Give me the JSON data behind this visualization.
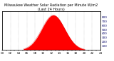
{
  "title": "Milwaukee Weather Solar Radiation per Minute W/m2 (Last 24 Hours)",
  "bg_color": "#ffffff",
  "plot_bg_color": "#ffffff",
  "border_color": "#000000",
  "fill_color": "#ff0000",
  "line_color": "#cc0000",
  "grid_color": "#888888",
  "right_axis_color": "#000066",
  "peak_value": 850,
  "num_points": 1440,
  "peak_hour": 12.5,
  "start_hour": 5.2,
  "end_hour": 20.2,
  "sigma": 2.8,
  "ylim": [
    0,
    950
  ],
  "yticks_right": [
    100,
    200,
    300,
    400,
    500,
    600,
    700,
    800
  ],
  "xlabel_color": "#000000",
  "tick_fontsize": 3.0,
  "title_fontsize": 3.5,
  "grid_positions": [
    2,
    4,
    6,
    8,
    10,
    12,
    14,
    16,
    18,
    20,
    22
  ]
}
